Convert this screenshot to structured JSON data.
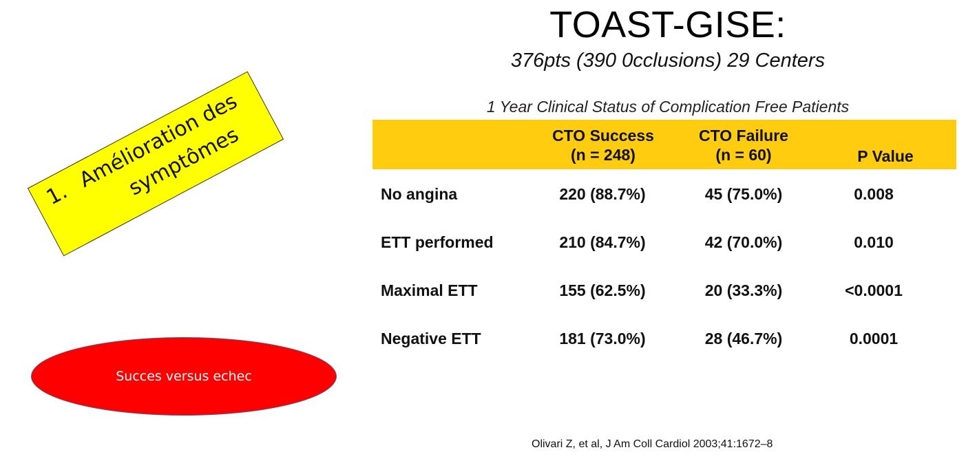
{
  "slide": {
    "title": "TOAST-GISE:",
    "subtitle": "376pts (390 0cclusions) 29 Centers",
    "caption": "1 Year Clinical Status of Complication Free Patients",
    "citation": "Olivari Z, et al, J Am Coll Cardiol 2003;41:1672–8"
  },
  "table": {
    "headers": {
      "success_line1": "CTO Success",
      "success_line2": "(n = 248)",
      "failure_line1": "CTO Failure",
      "failure_line2": "(n = 60)",
      "pvalue": "P Value"
    },
    "rows": [
      {
        "label": "No angina",
        "success": "220 (88.7%)",
        "failure": "45 (75.0%)",
        "pvalue": "0.008"
      },
      {
        "label": "ETT performed",
        "success": "210 (84.7%)",
        "failure": "42 (70.0%)",
        "pvalue": "0.010"
      },
      {
        "label": "Maximal ETT",
        "success": "155 (62.5%)",
        "failure": "20 (33.3%)",
        "pvalue": "<0.0001"
      },
      {
        "label": "Negative ETT",
        "success": "181 (73.0%)",
        "failure": "28 (46.7%)",
        "pvalue": "0.0001"
      }
    ]
  },
  "callout": {
    "number": "1.",
    "line1": "Amélioration des",
    "line2": "symptômes"
  },
  "oval": {
    "text": "Succes versus echec"
  },
  "colors": {
    "header_band": "#FFCC0F",
    "callout_fill": "#FFFF00",
    "oval_fill": "#FF0000"
  }
}
